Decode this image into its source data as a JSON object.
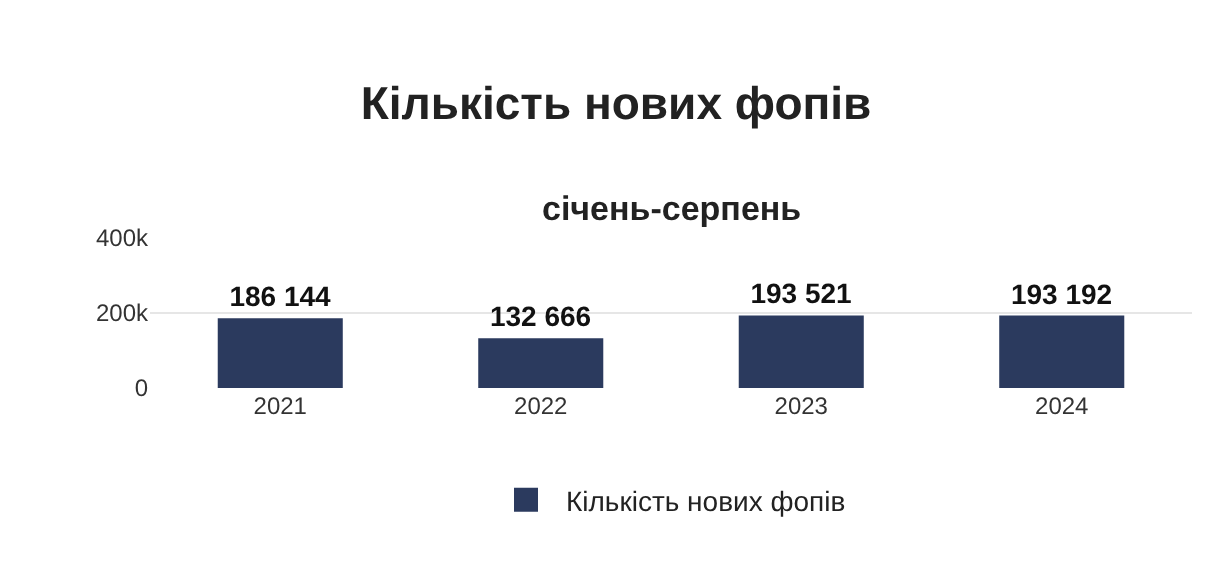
{
  "chart_data": {
    "type": "bar",
    "title": "Кількість нових фопів",
    "subtitle": "січень-серпень",
    "categories": [
      "2021",
      "2022",
      "2023",
      "2024"
    ],
    "series": [
      {
        "name": "Кількість нових фопів",
        "color": "#2b3a5e",
        "values": [
          186144,
          132666,
          193521,
          193192
        ],
        "value_labels": [
          "186 144",
          "132 666",
          "193 521",
          "193 192"
        ]
      }
    ],
    "ylim": [
      0,
      400000
    ],
    "yticks": [
      {
        "value": 0,
        "label": "0"
      },
      {
        "value": 200000,
        "label": "200k"
      },
      {
        "value": 400000,
        "label": "400k"
      }
    ],
    "grid": "y",
    "legend": "bottom"
  }
}
